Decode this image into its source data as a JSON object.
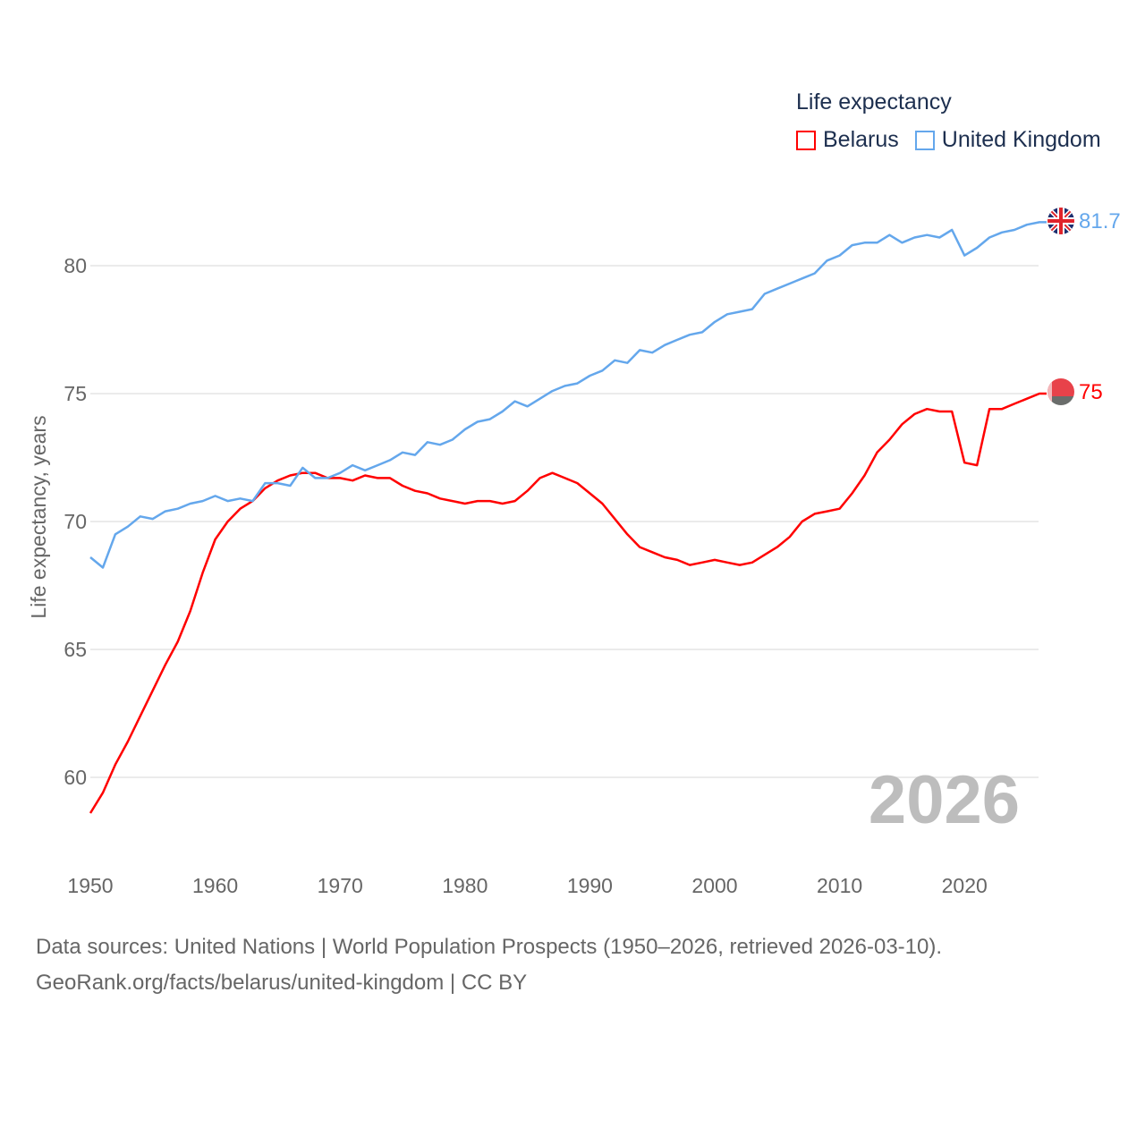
{
  "chart_data": {
    "type": "line",
    "legend_title": "Life expectancy",
    "ylabel": "Life expectancy, years",
    "xlabel": "",
    "x_ticks": [
      1950,
      1960,
      1970,
      1980,
      1990,
      2000,
      2010,
      2020
    ],
    "y_ticks": [
      60,
      65,
      70,
      75,
      80
    ],
    "xlim": [
      1950,
      2026
    ],
    "legend_position": "top-right",
    "grid": true,
    "year_watermark": "2026",
    "x": [
      1950,
      1951,
      1952,
      1953,
      1954,
      1955,
      1956,
      1957,
      1958,
      1959,
      1960,
      1961,
      1962,
      1963,
      1964,
      1965,
      1966,
      1967,
      1968,
      1969,
      1970,
      1971,
      1972,
      1973,
      1974,
      1975,
      1976,
      1977,
      1978,
      1979,
      1980,
      1981,
      1982,
      1983,
      1984,
      1985,
      1986,
      1987,
      1988,
      1989,
      1990,
      1991,
      1992,
      1993,
      1994,
      1995,
      1996,
      1997,
      1998,
      1999,
      2000,
      2001,
      2002,
      2003,
      2004,
      2005,
      2006,
      2007,
      2008,
      2009,
      2010,
      2011,
      2012,
      2013,
      2014,
      2015,
      2016,
      2017,
      2018,
      2019,
      2020,
      2021,
      2022,
      2023,
      2024,
      2025,
      2026
    ],
    "series": [
      {
        "name": "Belarus",
        "color": "#ff0000",
        "end_label": "75",
        "values": [
          58.6,
          59.4,
          60.5,
          61.4,
          62.4,
          63.4,
          64.4,
          65.3,
          66.5,
          68.0,
          69.3,
          70.0,
          70.5,
          70.8,
          71.3,
          71.6,
          71.8,
          71.9,
          71.9,
          71.7,
          71.7,
          71.6,
          71.8,
          71.7,
          71.7,
          71.4,
          71.2,
          71.1,
          70.9,
          70.8,
          70.7,
          70.8,
          70.8,
          70.7,
          70.8,
          71.2,
          71.7,
          71.9,
          71.7,
          71.5,
          71.1,
          70.7,
          70.1,
          69.5,
          69.0,
          68.8,
          68.6,
          68.5,
          68.3,
          68.4,
          68.5,
          68.4,
          68.3,
          68.4,
          68.7,
          69.0,
          69.4,
          70.0,
          70.3,
          70.4,
          70.5,
          71.1,
          71.8,
          72.7,
          73.2,
          73.8,
          74.2,
          74.4,
          74.3,
          74.3,
          72.3,
          72.2,
          74.4,
          74.4,
          74.6,
          74.8,
          75.0
        ]
      },
      {
        "name": "United Kingdom",
        "color": "#64a7ec",
        "end_label": "81.7",
        "values": [
          68.6,
          68.2,
          69.5,
          69.8,
          70.2,
          70.1,
          70.4,
          70.5,
          70.7,
          70.8,
          71.0,
          70.8,
          70.9,
          70.8,
          71.5,
          71.5,
          71.4,
          72.1,
          71.7,
          71.7,
          71.9,
          72.2,
          72.0,
          72.2,
          72.4,
          72.7,
          72.6,
          73.1,
          73.0,
          73.2,
          73.6,
          73.9,
          74.0,
          74.3,
          74.7,
          74.5,
          74.8,
          75.1,
          75.3,
          75.4,
          75.7,
          75.9,
          76.3,
          76.2,
          76.7,
          76.6,
          76.9,
          77.1,
          77.3,
          77.4,
          77.8,
          78.1,
          78.2,
          78.3,
          78.9,
          79.1,
          79.3,
          79.5,
          79.7,
          80.2,
          80.4,
          80.8,
          80.9,
          80.9,
          81.2,
          80.9,
          81.1,
          81.2,
          81.1,
          81.4,
          80.4,
          80.7,
          81.1,
          81.3,
          81.4,
          81.6,
          81.7
        ]
      }
    ]
  },
  "footer": {
    "line1": "Data sources: United Nations | World Population Prospects (1950–2026, retrieved 2026-03-10).",
    "line2": "GeoRank.org/facts/belarus/united-kingdom | CC BY"
  }
}
